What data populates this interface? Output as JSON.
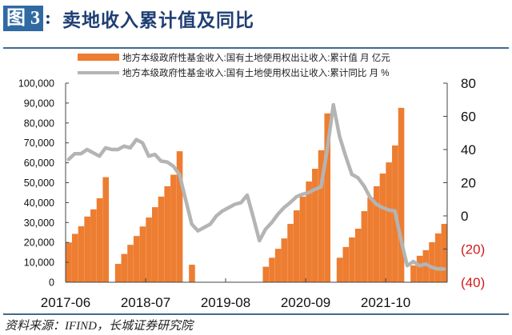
{
  "header": {
    "figure_label": "图 3",
    "colon": ":",
    "title": "卖地收入累计值及同比"
  },
  "source": "资料来源：IFIND，长城证券研究院",
  "colors": {
    "bar": "#ed7d31",
    "line": "#b4b4b4",
    "negative_tick": "#d01c1c",
    "rule": "#3f6a8f",
    "badge": "#2f6aa3"
  },
  "chart_data": {
    "type": "bar+line",
    "title": "卖地收入累计值及同比",
    "legend_position": "top",
    "grid": false,
    "legend": [
      {
        "name": "地方本级政府性基金收入:国有土地使用权出让收入:累计值 月 亿元",
        "type": "bar",
        "axis": "left"
      },
      {
        "name": "地方本级政府性基金收入:国有土地使用权出让收入:累计同比 月 %",
        "type": "line",
        "axis": "right"
      }
    ],
    "x_tick_labels": [
      "2017-06",
      "2018-07",
      "2019-08",
      "2020-09",
      "2021-10"
    ],
    "x_range": [
      "2017-06",
      "2022-07"
    ],
    "y_left": {
      "ticks": [
        "0",
        "10,000",
        "20,000",
        "30,000",
        "40,000",
        "50,000",
        "60,000",
        "70,000",
        "80,000",
        "90,000",
        "100,000"
      ],
      "ylim": [
        0,
        100000
      ]
    },
    "y_right": {
      "ticks": [
        "(40)",
        "(20)",
        "0",
        "20",
        "40",
        "60",
        "80"
      ],
      "ylim": [
        -40,
        80
      ]
    },
    "bars": [
      {
        "month": "2017-06",
        "value": 20000
      },
      {
        "month": "2017-07",
        "value": 24300
      },
      {
        "month": "2017-08",
        "value": 28100
      },
      {
        "month": "2017-09",
        "value": 33000
      },
      {
        "month": "2017-10",
        "value": 36600
      },
      {
        "month": "2017-11",
        "value": 42200
      },
      {
        "month": "2017-12",
        "value": 52800
      },
      {
        "month": "2018-02",
        "value": 9200
      },
      {
        "month": "2018-03",
        "value": 14200
      },
      {
        "month": "2018-04",
        "value": 18800
      },
      {
        "month": "2018-05",
        "value": 23200
      },
      {
        "month": "2018-06",
        "value": 28000
      },
      {
        "month": "2018-07",
        "value": 32500
      },
      {
        "month": "2018-08",
        "value": 37700
      },
      {
        "month": "2018-09",
        "value": 43000
      },
      {
        "month": "2018-10",
        "value": 48200
      },
      {
        "month": "2018-11",
        "value": 54000
      },
      {
        "month": "2018-12",
        "value": 65800
      },
      {
        "month": "2019-02",
        "value": 8800
      },
      {
        "month": "2020-02",
        "value": 7800
      },
      {
        "month": "2020-03",
        "value": 12300
      },
      {
        "month": "2020-04",
        "value": 16800
      },
      {
        "month": "2020-05",
        "value": 22000
      },
      {
        "month": "2020-06",
        "value": 29300
      },
      {
        "month": "2020-07",
        "value": 36100
      },
      {
        "month": "2020-08",
        "value": 43000
      },
      {
        "month": "2020-09",
        "value": 50600
      },
      {
        "month": "2020-10",
        "value": 57000
      },
      {
        "month": "2020-11",
        "value": 66300
      },
      {
        "month": "2020-12",
        "value": 84800
      },
      {
        "month": "2021-02",
        "value": 12300
      },
      {
        "month": "2021-03",
        "value": 17700
      },
      {
        "month": "2021-04",
        "value": 22500
      },
      {
        "month": "2021-05",
        "value": 26900
      },
      {
        "month": "2021-06",
        "value": 35700
      },
      {
        "month": "2021-07",
        "value": 42600
      },
      {
        "month": "2021-08",
        "value": 48200
      },
      {
        "month": "2021-09",
        "value": 54600
      },
      {
        "month": "2021-10",
        "value": 60200
      },
      {
        "month": "2021-11",
        "value": 68700
      },
      {
        "month": "2021-12",
        "value": 87600
      },
      {
        "month": "2022-02",
        "value": 8400
      },
      {
        "month": "2022-03",
        "value": 13300
      },
      {
        "month": "2022-04",
        "value": 16100
      },
      {
        "month": "2022-05",
        "value": 20100
      },
      {
        "month": "2022-06",
        "value": 24500
      },
      {
        "month": "2022-07",
        "value": 29300
      }
    ],
    "line": [
      {
        "month": "2017-06",
        "value": 34
      },
      {
        "month": "2017-07",
        "value": 37.5
      },
      {
        "month": "2017-08",
        "value": 37.5
      },
      {
        "month": "2017-09",
        "value": 40
      },
      {
        "month": "2017-10",
        "value": 38
      },
      {
        "month": "2017-11",
        "value": 36
      },
      {
        "month": "2017-12",
        "value": 41
      },
      {
        "month": "2018-01",
        "value": 40
      },
      {
        "month": "2018-02",
        "value": 40
      },
      {
        "month": "2018-03",
        "value": 42
      },
      {
        "month": "2018-04",
        "value": 41
      },
      {
        "month": "2018-05",
        "value": 46
      },
      {
        "month": "2018-06",
        "value": 44
      },
      {
        "month": "2018-07",
        "value": 36
      },
      {
        "month": "2018-08",
        "value": 37
      },
      {
        "month": "2018-09",
        "value": 33
      },
      {
        "month": "2018-10",
        "value": 32.5
      },
      {
        "month": "2018-11",
        "value": 30
      },
      {
        "month": "2018-12",
        "value": 25
      },
      {
        "month": "2019-01",
        "value": 10
      },
      {
        "month": "2019-02",
        "value": -5
      },
      {
        "month": "2019-03",
        "value": -9
      },
      {
        "month": "2019-04",
        "value": -7
      },
      {
        "month": "2019-05",
        "value": -5
      },
      {
        "month": "2019-06",
        "value": 0
      },
      {
        "month": "2019-07",
        "value": 3
      },
      {
        "month": "2019-08",
        "value": 5
      },
      {
        "month": "2019-09",
        "value": 7
      },
      {
        "month": "2019-10",
        "value": 8
      },
      {
        "month": "2019-11",
        "value": 12.5
      },
      {
        "month": "2019-12",
        "value": -1
      },
      {
        "month": "2020-01",
        "value": -15
      },
      {
        "month": "2020-02",
        "value": -8
      },
      {
        "month": "2020-03",
        "value": -4
      },
      {
        "month": "2020-04",
        "value": 1
      },
      {
        "month": "2020-05",
        "value": 5
      },
      {
        "month": "2020-06",
        "value": 8
      },
      {
        "month": "2020-07",
        "value": 11.5
      },
      {
        "month": "2020-08",
        "value": 13
      },
      {
        "month": "2020-09",
        "value": 14
      },
      {
        "month": "2020-10",
        "value": 16
      },
      {
        "month": "2020-11",
        "value": 17.5
      },
      {
        "month": "2020-12",
        "value": 40
      },
      {
        "month": "2021-01",
        "value": 67
      },
      {
        "month": "2021-02",
        "value": 48
      },
      {
        "month": "2021-03",
        "value": 36
      },
      {
        "month": "2021-04",
        "value": 25
      },
      {
        "month": "2021-05",
        "value": 23
      },
      {
        "month": "2021-06",
        "value": 18
      },
      {
        "month": "2021-07",
        "value": 11
      },
      {
        "month": "2021-08",
        "value": 7
      },
      {
        "month": "2021-09",
        "value": 5
      },
      {
        "month": "2021-10",
        "value": 3.5
      },
      {
        "month": "2021-11",
        "value": 3
      },
      {
        "month": "2021-12",
        "value": -14.5
      },
      {
        "month": "2022-01",
        "value": -30
      },
      {
        "month": "2022-02",
        "value": -27.5
      },
      {
        "month": "2022-03",
        "value": -30
      },
      {
        "month": "2022-04",
        "value": -29
      },
      {
        "month": "2022-05",
        "value": -31
      },
      {
        "month": "2022-06",
        "value": -32
      },
      {
        "month": "2022-07",
        "value": -32
      }
    ]
  }
}
